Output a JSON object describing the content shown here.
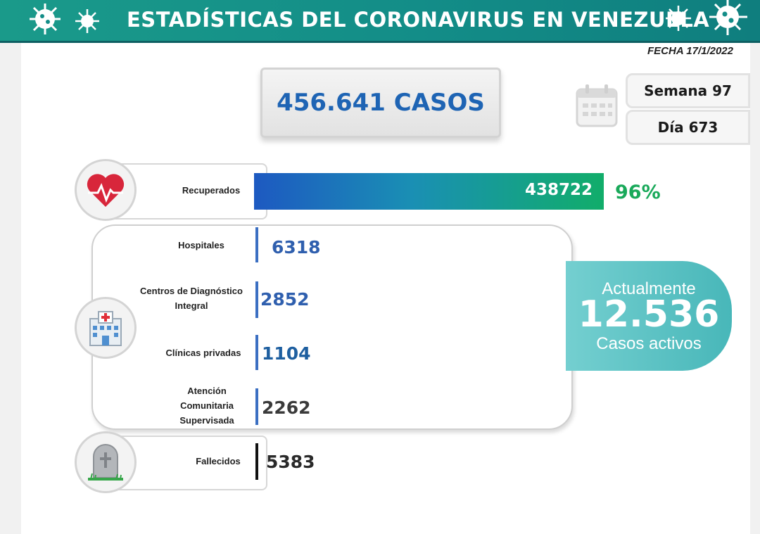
{
  "header": {
    "title": "ESTADÍSTICAS DEL CORONAVIRUS EN VENEZUELA"
  },
  "fecha": "FECHA 17/1/2022",
  "total_cases": "456.641 CASOS",
  "week_label": "Semana 97",
  "day_label": "Día 673",
  "recovered": {
    "label": "Recuperados",
    "value": "438722",
    "percent": "96%"
  },
  "hospital_stats": [
    {
      "label": "Hospitales",
      "value": "6318",
      "color": "#2f5fae"
    },
    {
      "label": "Centros de Diagnóstico Integral",
      "value": "2852",
      "color": "#2f5fae"
    },
    {
      "label": "Clínicas privadas",
      "value": "1104",
      "color": "#1e5fa0"
    },
    {
      "label": "Atención Comunitaria Supervisada",
      "value": "2262",
      "color": "#3a3a3a"
    }
  ],
  "deaths": {
    "label": "Fallecidos",
    "value": "5383"
  },
  "active": {
    "pre": "Actualmente",
    "value": "12.536",
    "post": "Casos activos"
  },
  "icons": [
    "virus-icon",
    "calendar-icon",
    "heart-pulse-icon",
    "hospital-icon",
    "gravestone-icon"
  ],
  "colors": {
    "banner": "#138d88",
    "accent_blue": "#1e64b4",
    "accent_green": "#19a95a",
    "active_teal": "#48b7b9"
  }
}
